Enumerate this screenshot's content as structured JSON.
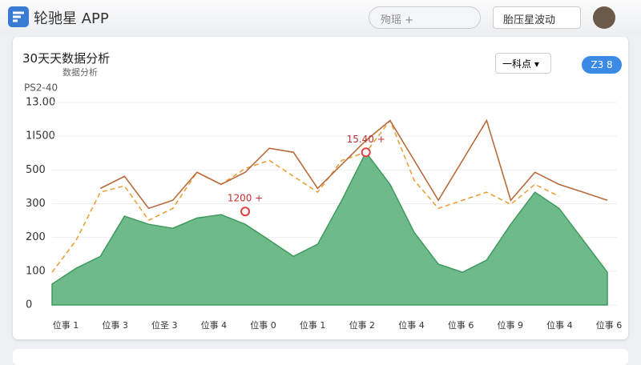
{
  "header": {
    "app_title": "轮驰星 APP",
    "search": "殉瑶 +",
    "button": "胎压星波动"
  },
  "card": {
    "title": "30天天数据分析",
    "subtitle": "数据分析",
    "dropdown": "一科点 ▾",
    "badge": "Z3 8"
  },
  "chart_data": {
    "type": "area",
    "y_axis_label": "PS2-40",
    "y_labels": [
      "13.00",
      "1I500",
      "500",
      "300",
      "200",
      "100",
      "0"
    ],
    "x_labels": [
      "位事 1",
      "位事 3",
      "位圣 3",
      "位事 4",
      "位事 0",
      "位事 1",
      "位事 2",
      "位事 4",
      "位事 6",
      "位事 9",
      "位事 4",
      "位事 6"
    ],
    "x": [
      0,
      1,
      2,
      3,
      4,
      5,
      6,
      7,
      8,
      9,
      10,
      11,
      12,
      13,
      14,
      15,
      16,
      17,
      18,
      19,
      20,
      21,
      22,
      23
    ],
    "xlim": [
      0,
      23
    ],
    "ylim": [
      0,
      650
    ],
    "series": [
      {
        "name": "area",
        "color": "#5fb37e",
        "values": [
          67,
          118,
          156,
          285,
          259,
          246,
          279,
          290,
          259,
          208,
          156,
          195,
          336,
          490,
          387,
          233,
          131,
          105,
          144,
          259,
          362,
          310,
          208,
          105
        ]
      },
      {
        "name": "dashed",
        "color": "#e8a13a",
        "values": [
          105,
          208,
          362,
          382,
          272,
          310,
          426,
          387,
          438,
          464,
          413,
          362,
          464,
          490,
          592,
          400,
          310,
          336,
          362,
          323,
          387,
          349,
          null,
          null
        ]
      },
      {
        "name": "line",
        "color": "#b86a3a",
        "values": [
          null,
          null,
          374,
          413,
          310,
          336,
          426,
          387,
          426,
          503,
          490,
          374,
          451,
          528,
          592,
          464,
          336,
          464,
          592,
          336,
          426,
          387,
          362,
          336
        ]
      }
    ],
    "annotations": [
      {
        "text": "15.40 +",
        "x": 13,
        "y": 490
      },
      {
        "text": "1200 +",
        "x": 8,
        "y": 300
      }
    ]
  }
}
